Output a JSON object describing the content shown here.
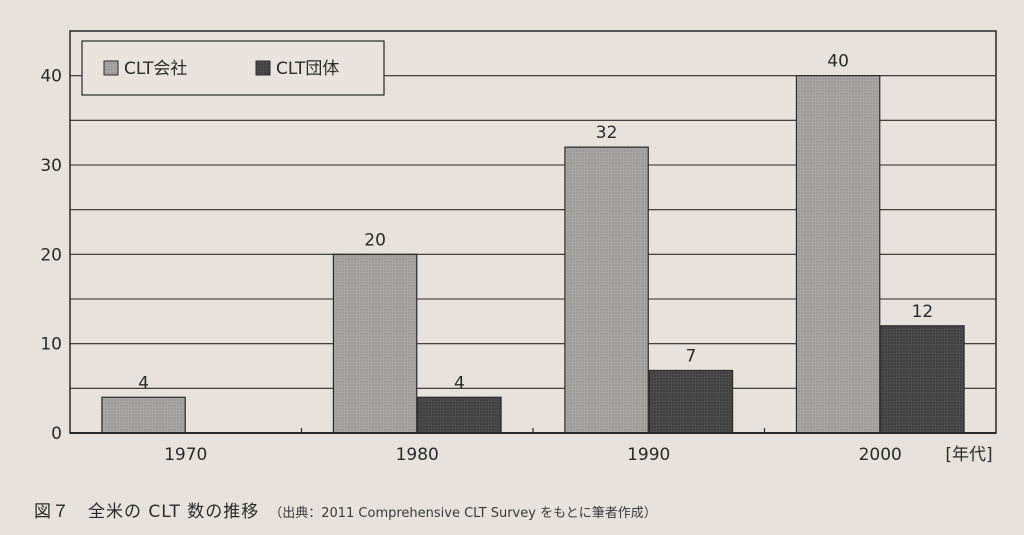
{
  "chart_data": {
    "type": "bar",
    "categories": [
      "1970",
      "1980",
      "1990",
      "2000"
    ],
    "series": [
      {
        "name": "CLT会社",
        "values": [
          4,
          20,
          32,
          40
        ],
        "color": "#a8a6a2"
      },
      {
        "name": "CLT団体",
        "values": [
          null,
          4,
          7,
          12
        ],
        "color": "#4a4a4a"
      }
    ],
    "ylim": [
      0,
      45
    ],
    "yticks": [
      0,
      10,
      20,
      30,
      40
    ],
    "xlabel": "[年代]",
    "ylabel": "",
    "grid": true,
    "legend_position": "top-left"
  },
  "caption": {
    "figure_no": "図７",
    "title": "全米の CLT 数の推移",
    "source": "（出典：2011 Comprehensive CLT Survey をもとに筆者作成）"
  }
}
